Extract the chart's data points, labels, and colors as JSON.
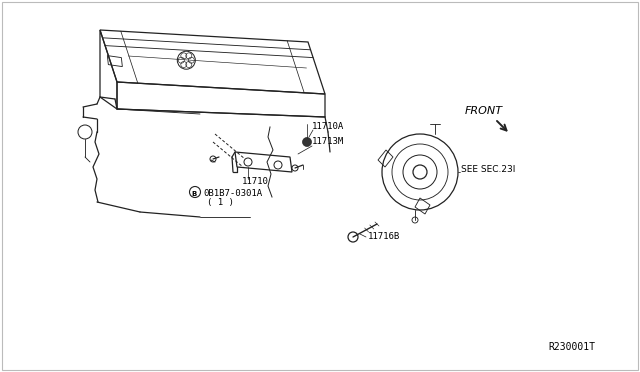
{
  "background_color": "#ffffff",
  "border_color": "#bbbbbb",
  "line_color": "#222222",
  "text_color": "#000000",
  "diagram_id": "R230001T",
  "labels": {
    "front": "FRONT",
    "part_11710A": "11710A",
    "part_11713M": "11713M",
    "part_11710": "11710",
    "part_0B1B7_line1": "0B1B7-0301A",
    "part_0B1B7_line2": "( 1 )",
    "part_11716B": "11716B",
    "part_see": "SEE SEC.23I"
  },
  "font_size_label": 6.5,
  "font_size_diagram_id": 7,
  "line_width": 0.9
}
